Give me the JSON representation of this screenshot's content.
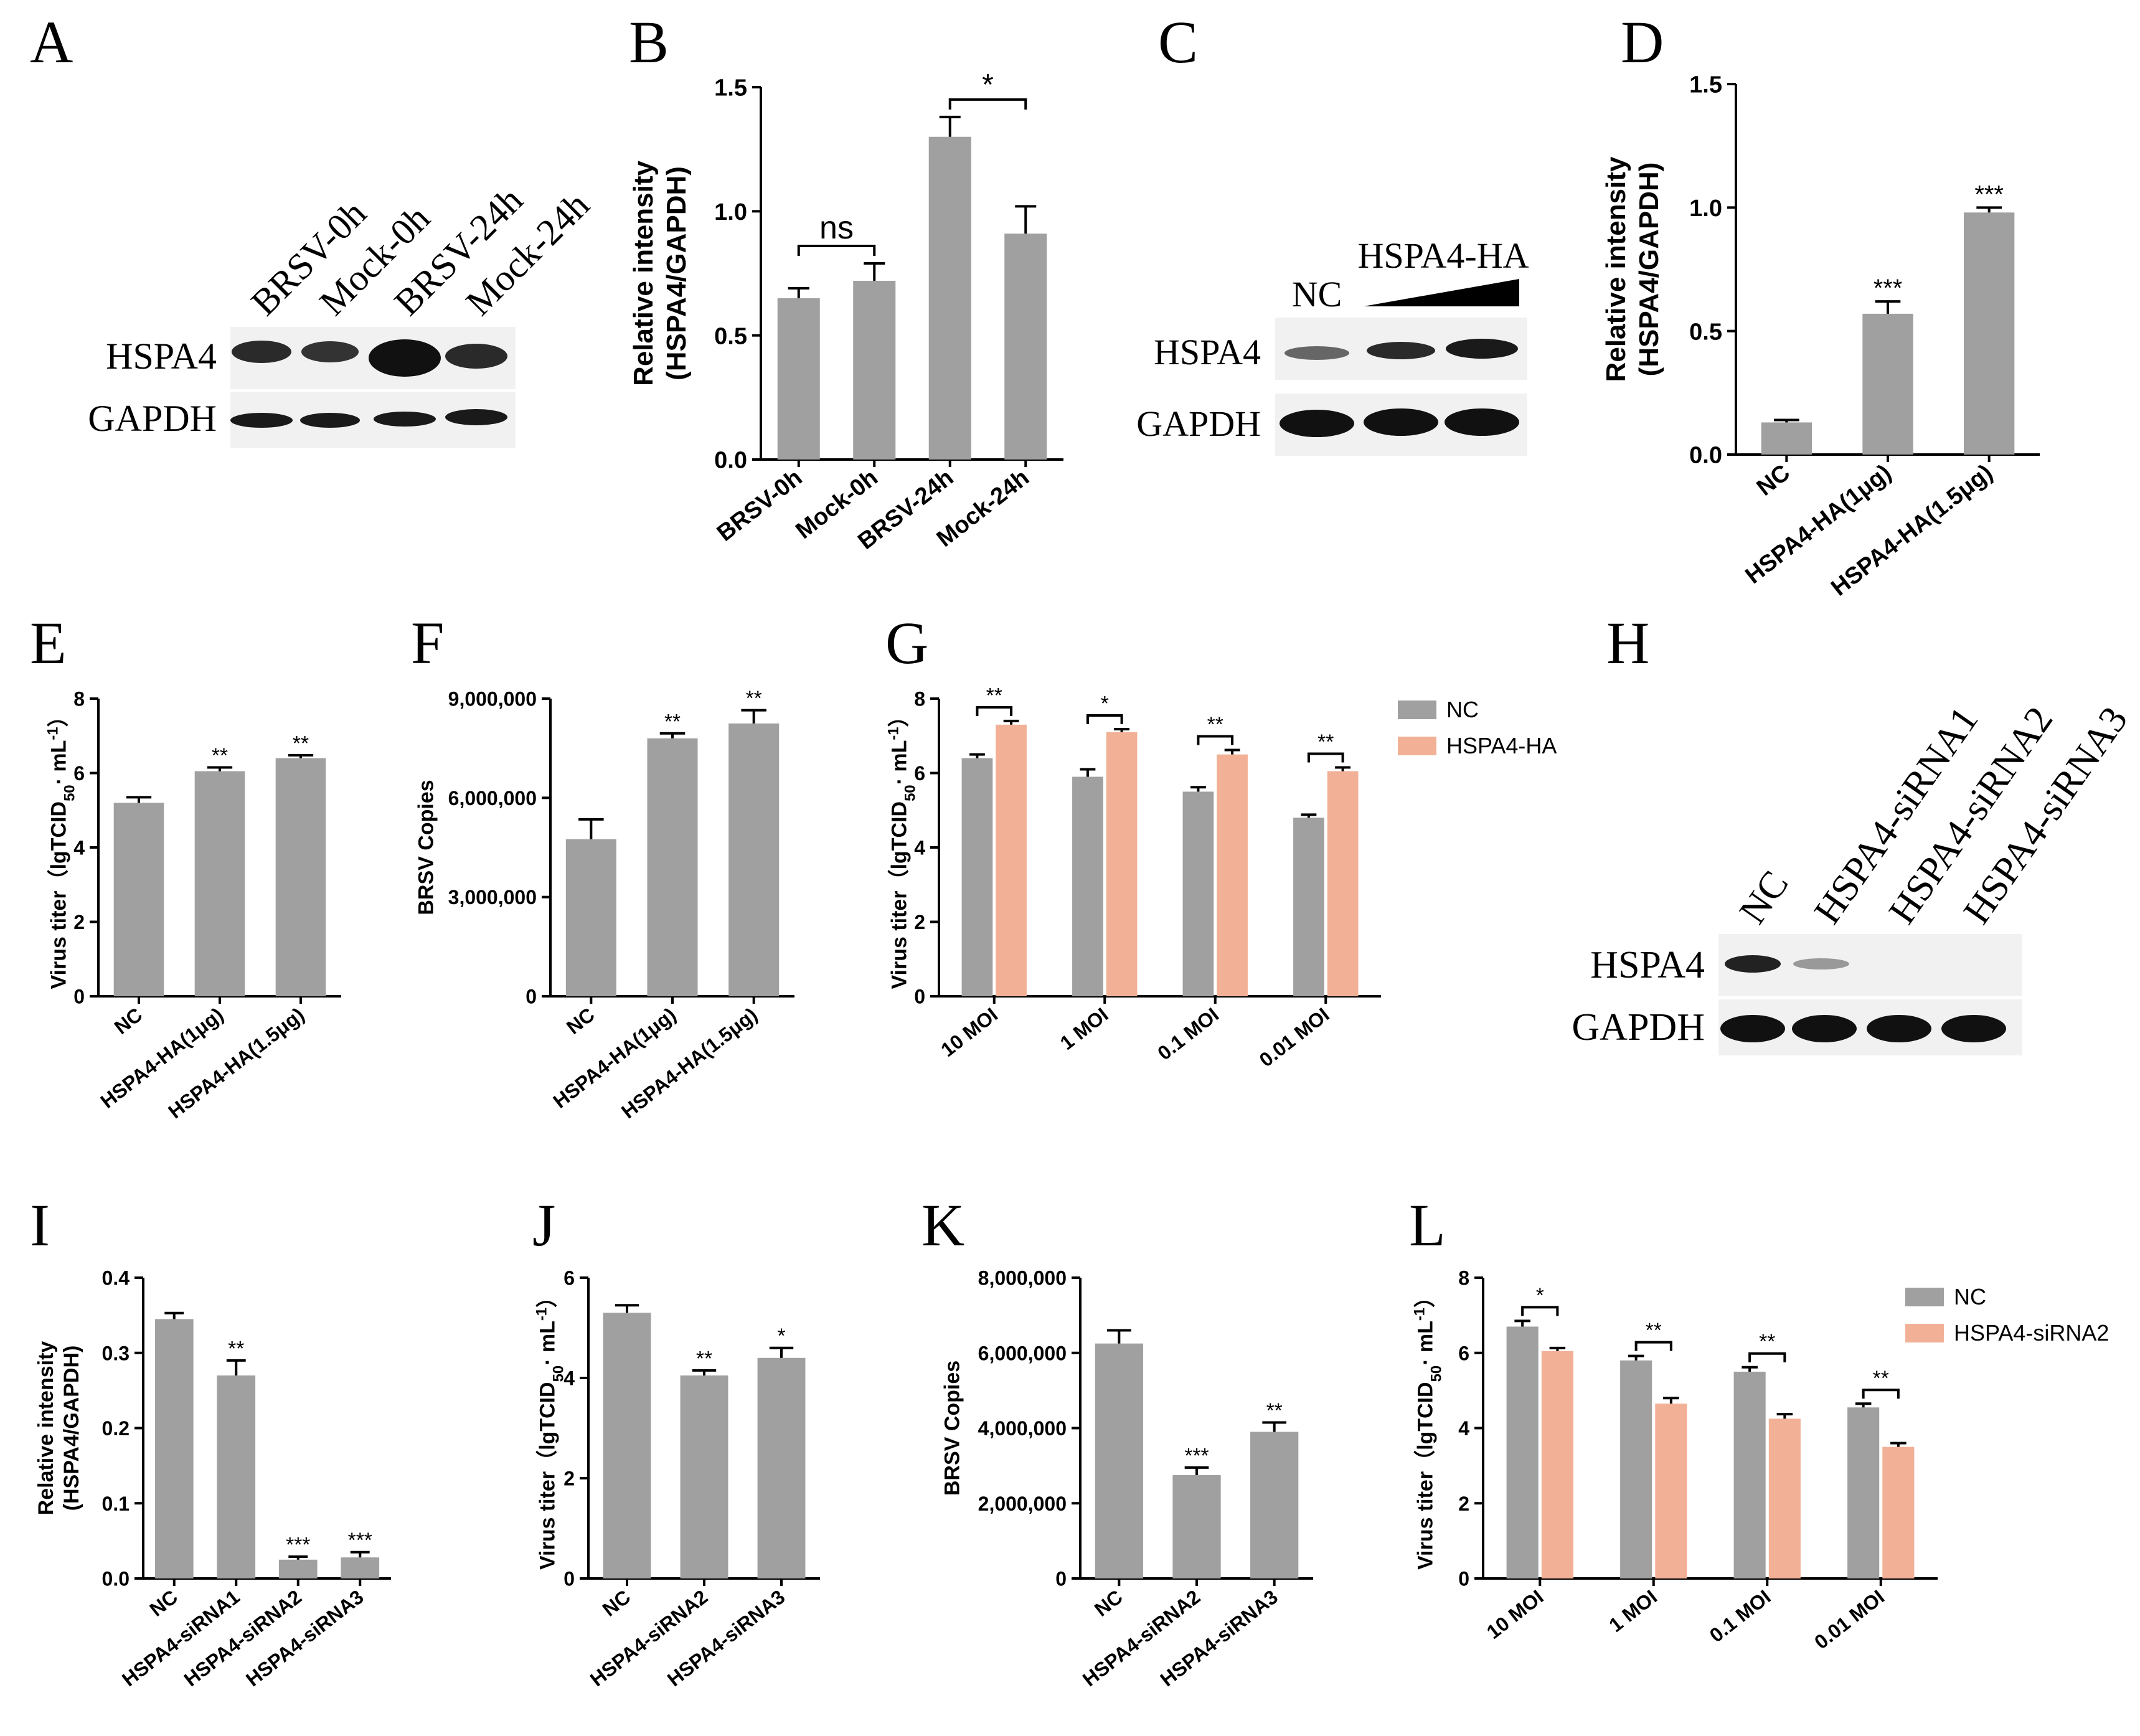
{
  "colors": {
    "grey": "#a0a0a0",
    "salmon": "#f2b196",
    "blot_bg": "#f1f1f1",
    "band": "#1a1a1a"
  },
  "panel_labels": [
    "A",
    "B",
    "C",
    "D",
    "E",
    "F",
    "G",
    "H",
    "I",
    "J",
    "K",
    "L"
  ],
  "blots": {
    "A": {
      "lanes": [
        "BRSV-0h",
        "Mock-0h",
        "BRSV-24h",
        "Mock-24h"
      ],
      "rows": [
        "HSPA4",
        "GAPDH"
      ]
    },
    "C": {
      "lanes": [
        "NC"
      ],
      "group": "HSPA4-HA",
      "rows": [
        "HSPA4",
        "GAPDH"
      ]
    },
    "H": {
      "lanes": [
        "NC",
        "HSPA4-siRNA1",
        "HSPA4-siRNA2",
        "HSPA4-siRNA3"
      ],
      "rows": [
        "HSPA4",
        "GAPDH"
      ]
    }
  },
  "chart_data": [
    {
      "panel": "B",
      "type": "bar",
      "ylabel": [
        "Relative intensity",
        "(HSPA4/GAPDH)"
      ],
      "categories": [
        "BRSV-0h",
        "Mock-0h",
        "BRSV-24h",
        "Mock-24h"
      ],
      "values": [
        0.65,
        0.72,
        1.3,
        0.91
      ],
      "errors": [
        0.04,
        0.07,
        0.08,
        0.11
      ],
      "ylim": [
        0,
        1.5
      ],
      "yticks": [
        "0.0",
        "0.5",
        "1.0",
        "1.5"
      ],
      "annotations": [
        "ns",
        "*"
      ]
    },
    {
      "panel": "D",
      "type": "bar",
      "ylabel": [
        "Relative intensity",
        "(HSPA4/GAPDH)"
      ],
      "categories": [
        "NC",
        "HSPA4-HA(1μg)",
        "HSPA4-HA(1.5μg)"
      ],
      "values": [
        0.13,
        0.57,
        0.98
      ],
      "errors": [
        0.01,
        0.05,
        0.02
      ],
      "ylim": [
        0,
        1.5
      ],
      "yticks": [
        "0.0",
        "0.5",
        "1.0",
        "1.5"
      ],
      "stars": [
        "",
        "***",
        "***"
      ]
    },
    {
      "panel": "E",
      "type": "bar",
      "ylabel": [
        "Virus titer（lgTCID",
        "50",
        "· mL",
        "-1",
        "）"
      ],
      "categories": [
        "NC",
        "HSPA4-HA(1μg)",
        "HSPA4-HA(1.5μg)"
      ],
      "values": [
        5.2,
        6.05,
        6.4
      ],
      "errors": [
        0.15,
        0.1,
        0.08
      ],
      "ylim": [
        0,
        8
      ],
      "yticks": [
        "0",
        "2",
        "4",
        "6",
        "8"
      ],
      "stars": [
        "",
        "**",
        "**"
      ]
    },
    {
      "panel": "F",
      "type": "bar",
      "ylabel": [
        "BRSV Copies"
      ],
      "categories": [
        "NC",
        "HSPA4-HA(1μg)",
        "HSPA4-HA(1.5μg)"
      ],
      "values": [
        4750000,
        7800000,
        8250000
      ],
      "errors": [
        600000,
        150000,
        400000
      ],
      "ylim": [
        0,
        9000000
      ],
      "yticks": [
        "0",
        "3,000,000",
        "6,000,000",
        "9,000,000"
      ],
      "stars": [
        "",
        "**",
        "**"
      ]
    },
    {
      "panel": "G",
      "type": "bar",
      "ylabel": [
        "Virus titer（lgTCID",
        "50",
        "· mL",
        "-1",
        "）"
      ],
      "categories": [
        "10 MOI",
        "1 MOI",
        "0.1 MOI",
        "0.01 MOI"
      ],
      "series": [
        {
          "name": "NC",
          "values": [
            6.4,
            5.9,
            5.5,
            4.8
          ],
          "errors": [
            0.1,
            0.2,
            0.12,
            0.08
          ]
        },
        {
          "name": "HSPA4-HA",
          "values": [
            7.3,
            7.1,
            6.5,
            6.05
          ],
          "errors": [
            0.1,
            0.08,
            0.12,
            0.1
          ]
        }
      ],
      "ylim": [
        0,
        8
      ],
      "yticks": [
        "0",
        "2",
        "4",
        "6",
        "8"
      ],
      "stars": [
        "**",
        "*",
        "**",
        "**"
      ]
    },
    {
      "panel": "I",
      "type": "bar",
      "ylabel": [
        "Relative intensity",
        "(HSPA4/GAPDH)"
      ],
      "categories": [
        "NC",
        "HSPA4-siRNA1",
        "HSPA4-siRNA2",
        "HSPA4-siRNA3"
      ],
      "values": [
        0.345,
        0.27,
        0.025,
        0.028
      ],
      "errors": [
        0.008,
        0.02,
        0.004,
        0.007
      ],
      "ylim": [
        0,
        0.4
      ],
      "yticks": [
        "0.0",
        "0.1",
        "0.2",
        "0.3",
        "0.4"
      ],
      "stars": [
        "",
        "**",
        "***",
        "***"
      ]
    },
    {
      "panel": "J",
      "type": "bar",
      "ylabel": [
        "Virus titer（lgTCID",
        "50",
        "· mL",
        "-1",
        "）"
      ],
      "categories": [
        "NC",
        "HSPA4-siRNA2",
        "HSPA4-siRNA3"
      ],
      "values": [
        5.3,
        4.05,
        4.4
      ],
      "errors": [
        0.15,
        0.1,
        0.2
      ],
      "ylim": [
        0,
        6
      ],
      "yticks": [
        "0",
        "2",
        "4",
        "6"
      ],
      "stars": [
        "",
        "**",
        "*"
      ]
    },
    {
      "panel": "K",
      "type": "bar",
      "ylabel": [
        "BRSV Copies"
      ],
      "categories": [
        "NC",
        "HSPA4-siRNA2",
        "HSPA4-siRNA3"
      ],
      "values": [
        6250000,
        2750000,
        3900000
      ],
      "errors": [
        350000,
        200000,
        250000
      ],
      "ylim": [
        0,
        8000000
      ],
      "yticks": [
        "0",
        "2,000,000",
        "4,000,000",
        "6,000,000",
        "8,000,000"
      ],
      "stars": [
        "",
        "***",
        "**"
      ]
    },
    {
      "panel": "L",
      "type": "bar",
      "ylabel": [
        "Virus titer（lgTCID",
        "50",
        "· mL",
        "-1",
        "）"
      ],
      "categories": [
        "10 MOI",
        "1 MOI",
        "0.1 MOI",
        "0.01 MOI"
      ],
      "series": [
        {
          "name": "NC",
          "values": [
            6.7,
            5.8,
            5.5,
            4.55
          ],
          "errors": [
            0.15,
            0.12,
            0.12,
            0.1
          ]
        },
        {
          "name": "HSPA4-siRNA2",
          "values": [
            6.05,
            4.65,
            4.25,
            3.5
          ],
          "errors": [
            0.08,
            0.15,
            0.12,
            0.1
          ]
        }
      ],
      "ylim": [
        0,
        8
      ],
      "yticks": [
        "0",
        "2",
        "4",
        "6",
        "8"
      ],
      "stars": [
        "*",
        "**",
        "**",
        "**"
      ]
    }
  ]
}
